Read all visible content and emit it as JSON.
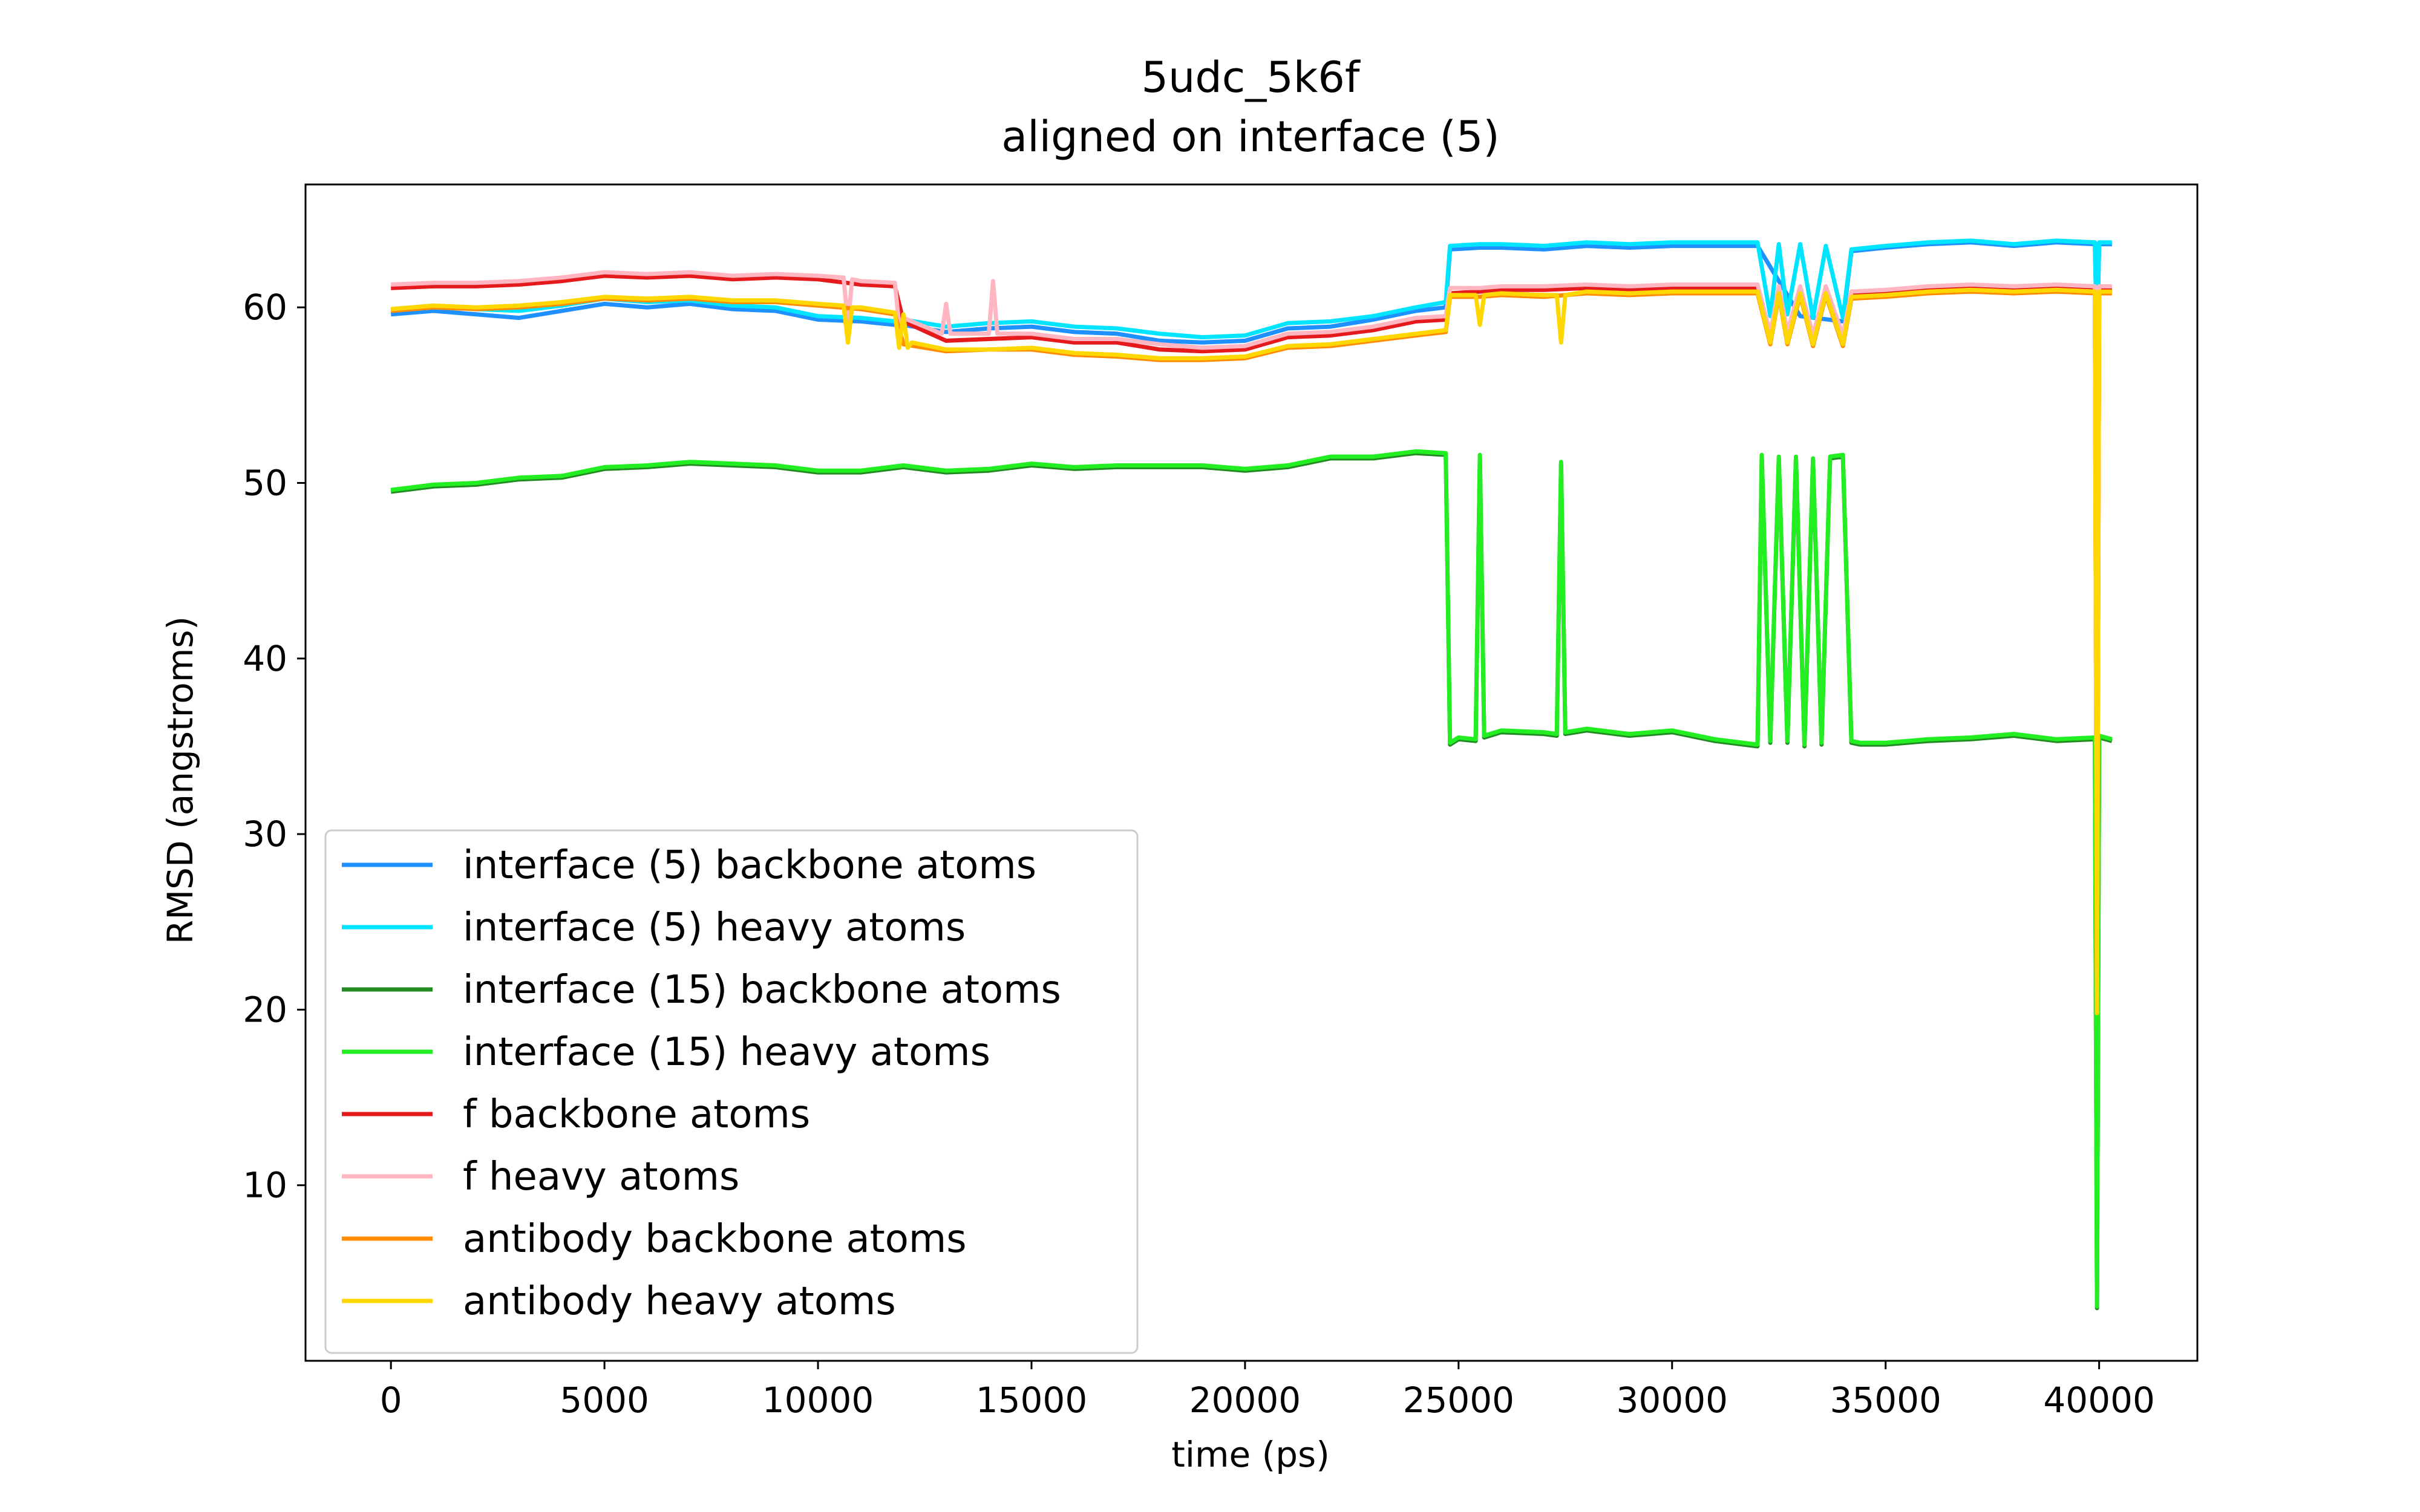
{
  "chart_data": {
    "type": "line",
    "title": "5udc_5k6f",
    "subtitle": "aligned on interface (5)",
    "xlabel": "time (ps)",
    "ylabel": "RMSD (angstroms)",
    "xlim": [
      -2000,
      42300
    ],
    "ylim": [
      0,
      67
    ],
    "xticks": [
      0,
      5000,
      10000,
      15000,
      20000,
      25000,
      30000,
      35000,
      40000
    ],
    "yticks": [
      10,
      20,
      30,
      40,
      50,
      60
    ],
    "grid": false,
    "legend_position": "lower-left",
    "series": [
      {
        "name": "interface (5) backbone atoms",
        "color": "#1e90ff",
        "x": [
          0,
          1000,
          2000,
          3000,
          4000,
          5000,
          6000,
          7000,
          8000,
          9000,
          10000,
          11000,
          11800,
          12000,
          13000,
          14000,
          15000,
          16000,
          17000,
          18000,
          19000,
          20000,
          21000,
          22000,
          23000,
          24000,
          24700,
          24800,
          25500,
          26000,
          27000,
          28000,
          29000,
          30000,
          31000,
          32000,
          33000,
          34000,
          34200,
          35000,
          36000,
          37000,
          38000,
          39000,
          39900,
          39950,
          40000,
          40300
        ],
        "y": [
          59.6,
          59.8,
          59.6,
          59.4,
          59.8,
          60.2,
          60.0,
          60.2,
          59.9,
          59.8,
          59.3,
          59.2,
          59.0,
          59.0,
          58.6,
          58.8,
          58.9,
          58.6,
          58.5,
          58.1,
          58.0,
          58.1,
          58.8,
          58.9,
          59.3,
          59.8,
          60.0,
          63.3,
          63.4,
          63.4,
          63.3,
          63.5,
          63.4,
          63.5,
          63.5,
          63.5,
          59.5,
          59.2,
          63.2,
          63.4,
          63.6,
          63.7,
          63.5,
          63.7,
          63.6,
          58.0,
          63.6,
          63.6
        ]
      },
      {
        "name": "interface (5) heavy atoms",
        "color": "#00e5ff",
        "x": [
          0,
          1000,
          2000,
          3000,
          4000,
          5000,
          6000,
          7000,
          8000,
          9000,
          10000,
          11000,
          11800,
          12000,
          13000,
          14000,
          15000,
          16000,
          17000,
          18000,
          19000,
          20000,
          21000,
          22000,
          23000,
          24000,
          24700,
          24800,
          25500,
          26000,
          27000,
          28000,
          29000,
          30000,
          31000,
          32000,
          32300,
          32500,
          32700,
          33000,
          33300,
          33600,
          34000,
          34200,
          35000,
          36000,
          37000,
          38000,
          39000,
          39900,
          39950,
          40000,
          40300
        ],
        "y": [
          59.9,
          60.1,
          59.9,
          59.8,
          60.1,
          60.5,
          60.3,
          60.4,
          60.1,
          60.0,
          59.5,
          59.4,
          59.2,
          59.3,
          58.9,
          59.1,
          59.2,
          58.9,
          58.8,
          58.5,
          58.3,
          58.4,
          59.1,
          59.2,
          59.5,
          60.0,
          60.3,
          63.5,
          63.6,
          63.6,
          63.5,
          63.7,
          63.6,
          63.7,
          63.7,
          63.7,
          59.5,
          63.6,
          59.6,
          63.6,
          59.4,
          63.5,
          59.4,
          63.3,
          63.5,
          63.7,
          63.8,
          63.6,
          63.8,
          63.7,
          58.2,
          63.7,
          63.7
        ]
      },
      {
        "name": "interface (15) backbone atoms",
        "color": "#228b22",
        "x": [
          0,
          1000,
          2000,
          3000,
          4000,
          5000,
          6000,
          7000,
          8000,
          9000,
          10000,
          11000,
          12000,
          13000,
          14000,
          15000,
          16000,
          17000,
          18000,
          19000,
          20000,
          21000,
          22000,
          23000,
          24000,
          24700,
          24800,
          25000,
          25400,
          25500,
          25600,
          26000,
          27000,
          27300,
          27400,
          27500,
          28000,
          29000,
          30000,
          31000,
          32000,
          32100,
          32300,
          32500,
          32700,
          32900,
          33100,
          33300,
          33500,
          33700,
          34000,
          34200,
          34400,
          35000,
          36000,
          37000,
          38000,
          39000,
          39900,
          39950,
          40000,
          40300
        ],
        "y": [
          49.5,
          49.8,
          49.9,
          50.2,
          50.3,
          50.8,
          50.9,
          51.1,
          51.0,
          50.9,
          50.6,
          50.6,
          50.9,
          50.6,
          50.7,
          51.0,
          50.8,
          50.9,
          50.9,
          50.9,
          50.7,
          50.9,
          51.4,
          51.4,
          51.7,
          51.6,
          35.1,
          35.4,
          35.3,
          51.5,
          35.5,
          35.8,
          35.7,
          35.6,
          51.1,
          35.7,
          35.9,
          35.6,
          35.8,
          35.3,
          35.0,
          51.5,
          35.2,
          51.4,
          35.2,
          51.4,
          35.0,
          51.3,
          35.1,
          51.4,
          51.5,
          35.2,
          35.1,
          35.1,
          35.3,
          35.4,
          35.6,
          35.3,
          35.4,
          3.0,
          35.5,
          35.3
        ]
      },
      {
        "name": "interface (15) heavy atoms",
        "color": "#22ee22",
        "x": [
          0,
          1000,
          2000,
          3000,
          4000,
          5000,
          6000,
          7000,
          8000,
          9000,
          10000,
          11000,
          12000,
          13000,
          14000,
          15000,
          16000,
          17000,
          18000,
          19000,
          20000,
          21000,
          22000,
          23000,
          24000,
          24700,
          24800,
          25000,
          25400,
          25500,
          25600,
          26000,
          27000,
          27300,
          27400,
          27500,
          28000,
          29000,
          30000,
          31000,
          32000,
          32100,
          32300,
          32500,
          32700,
          32900,
          33100,
          33300,
          33500,
          33700,
          34000,
          34200,
          34400,
          35000,
          36000,
          37000,
          38000,
          39000,
          39900,
          39950,
          40000,
          40300
        ],
        "y": [
          49.6,
          49.9,
          50.0,
          50.3,
          50.4,
          50.9,
          51.0,
          51.2,
          51.1,
          51.0,
          50.7,
          50.7,
          51.0,
          50.7,
          50.8,
          51.1,
          50.9,
          51.0,
          51.0,
          51.0,
          50.8,
          51.0,
          51.5,
          51.5,
          51.8,
          51.7,
          35.2,
          35.5,
          35.4,
          51.6,
          35.6,
          35.9,
          35.8,
          35.7,
          51.2,
          35.8,
          36.0,
          35.7,
          35.9,
          35.4,
          35.1,
          51.6,
          35.3,
          51.5,
          35.3,
          51.5,
          35.1,
          51.4,
          35.2,
          51.5,
          51.6,
          35.3,
          35.2,
          35.2,
          35.4,
          35.5,
          35.7,
          35.4,
          35.5,
          3.1,
          35.6,
          35.4
        ]
      },
      {
        "name": "f backbone atoms",
        "color": "#e41a1c",
        "x": [
          0,
          1000,
          2000,
          3000,
          4000,
          5000,
          6000,
          7000,
          8000,
          9000,
          10000,
          11000,
          11800,
          12000,
          13000,
          14000,
          15000,
          16000,
          17000,
          18000,
          19000,
          20000,
          21000,
          22000,
          23000,
          24000,
          24700,
          24800,
          25500,
          26000,
          27000,
          28000,
          29000,
          30000,
          31000,
          32000,
          32300,
          32500,
          32700,
          33000,
          33300,
          33600,
          34000,
          34200,
          35000,
          36000,
          37000,
          38000,
          39000,
          39900,
          39950,
          40000,
          40300
        ],
        "y": [
          61.1,
          61.2,
          61.2,
          61.3,
          61.5,
          61.8,
          61.7,
          61.8,
          61.6,
          61.7,
          61.6,
          61.3,
          61.2,
          59.2,
          58.1,
          58.2,
          58.3,
          58.0,
          58.0,
          57.6,
          57.5,
          57.6,
          58.3,
          58.4,
          58.7,
          59.2,
          59.3,
          60.8,
          60.9,
          61.0,
          61.0,
          61.1,
          61.0,
          61.1,
          61.1,
          61.1,
          58.3,
          61.0,
          58.4,
          61.0,
          58.2,
          61.0,
          58.2,
          60.7,
          60.8,
          61.0,
          61.1,
          61.0,
          61.1,
          61.0,
          20.3,
          61.0,
          61.0
        ]
      },
      {
        "name": "f heavy atoms",
        "color": "#ffb6c1",
        "x": [
          0,
          1000,
          2000,
          3000,
          4000,
          5000,
          6000,
          7000,
          8000,
          9000,
          10000,
          10600,
          10700,
          10800,
          11000,
          11800,
          11900,
          12000,
          12900,
          13000,
          13100,
          14000,
          14100,
          14200,
          15000,
          16000,
          17000,
          18000,
          19000,
          20000,
          21000,
          22000,
          23000,
          24000,
          24700,
          24800,
          25500,
          26000,
          27000,
          28000,
          29000,
          30000,
          31000,
          32000,
          32300,
          32500,
          32700,
          33000,
          33300,
          33600,
          34000,
          34200,
          35000,
          36000,
          37000,
          38000,
          39000,
          39900,
          39950,
          40000,
          40300
        ],
        "y": [
          61.3,
          61.4,
          61.4,
          61.5,
          61.7,
          62.0,
          61.9,
          62.0,
          61.8,
          61.9,
          61.8,
          61.7,
          59.0,
          61.6,
          61.5,
          61.4,
          59.0,
          59.4,
          58.5,
          60.2,
          58.5,
          58.5,
          61.5,
          58.5,
          58.5,
          58.2,
          58.2,
          57.9,
          57.7,
          57.8,
          58.5,
          58.6,
          58.9,
          59.4,
          59.5,
          61.1,
          61.1,
          61.2,
          61.2,
          61.3,
          61.2,
          61.3,
          61.3,
          61.3,
          58.5,
          61.2,
          58.6,
          61.2,
          58.4,
          61.2,
          58.4,
          60.9,
          61.0,
          61.2,
          61.3,
          61.2,
          61.3,
          61.2,
          20.6,
          61.2,
          61.2
        ]
      },
      {
        "name": "antibody backbone atoms",
        "color": "#ff8c00",
        "x": [
          0,
          1000,
          2000,
          3000,
          4000,
          5000,
          6000,
          7000,
          8000,
          9000,
          10000,
          11000,
          11800,
          12000,
          13000,
          14000,
          15000,
          16000,
          17000,
          18000,
          19000,
          20000,
          21000,
          22000,
          23000,
          24000,
          24700,
          24800,
          25500,
          26000,
          27000,
          28000,
          29000,
          30000,
          31000,
          32000,
          32300,
          32500,
          32700,
          33000,
          33300,
          33600,
          34000,
          34200,
          35000,
          36000,
          37000,
          38000,
          39000,
          39900,
          39950,
          40000,
          40300
        ],
        "y": [
          59.8,
          60.0,
          59.9,
          60.0,
          60.2,
          60.5,
          60.4,
          60.5,
          60.3,
          60.3,
          60.1,
          59.9,
          59.6,
          57.9,
          57.5,
          57.6,
          57.6,
          57.3,
          57.2,
          57.0,
          57.0,
          57.1,
          57.7,
          57.8,
          58.1,
          58.4,
          58.6,
          60.6,
          60.6,
          60.7,
          60.6,
          60.8,
          60.7,
          60.8,
          60.8,
          60.8,
          57.9,
          60.7,
          57.9,
          60.7,
          57.8,
          60.7,
          57.8,
          60.5,
          60.6,
          60.8,
          60.9,
          60.8,
          60.9,
          60.8,
          20.0,
          60.8,
          60.8
        ]
      },
      {
        "name": "antibody heavy atoms",
        "color": "#ffd700",
        "x": [
          0,
          1000,
          2000,
          3000,
          4000,
          5000,
          6000,
          7000,
          8000,
          9000,
          10000,
          10600,
          10700,
          10800,
          11000,
          11800,
          11900,
          12000,
          12100,
          12200,
          13000,
          14000,
          15000,
          16000,
          17000,
          18000,
          19000,
          20000,
          21000,
          22000,
          23000,
          24000,
          24700,
          24800,
          25400,
          25500,
          25600,
          26000,
          27000,
          27300,
          27400,
          27500,
          28000,
          29000,
          30000,
          31000,
          32000,
          32300,
          32500,
          32700,
          33000,
          33300,
          33600,
          34000,
          34200,
          35000,
          36000,
          37000,
          38000,
          39000,
          39900,
          39950,
          40000,
          40300
        ],
        "y": [
          59.9,
          60.1,
          60.0,
          60.1,
          60.3,
          60.6,
          60.5,
          60.6,
          60.4,
          60.4,
          60.2,
          60.1,
          58.0,
          60.0,
          60.0,
          59.7,
          57.7,
          59.6,
          57.7,
          58.0,
          57.6,
          57.6,
          57.7,
          57.4,
          57.3,
          57.1,
          57.1,
          57.2,
          57.8,
          57.9,
          58.2,
          58.5,
          58.7,
          60.7,
          60.7,
          59.0,
          60.7,
          60.8,
          60.7,
          60.7,
          58.0,
          60.7,
          60.9,
          60.8,
          60.9,
          60.9,
          60.9,
          58.0,
          60.8,
          58.0,
          60.8,
          57.9,
          60.8,
          57.9,
          60.6,
          60.7,
          60.9,
          61.0,
          60.9,
          61.0,
          60.9,
          19.8,
          60.9,
          60.9
        ]
      }
    ]
  }
}
